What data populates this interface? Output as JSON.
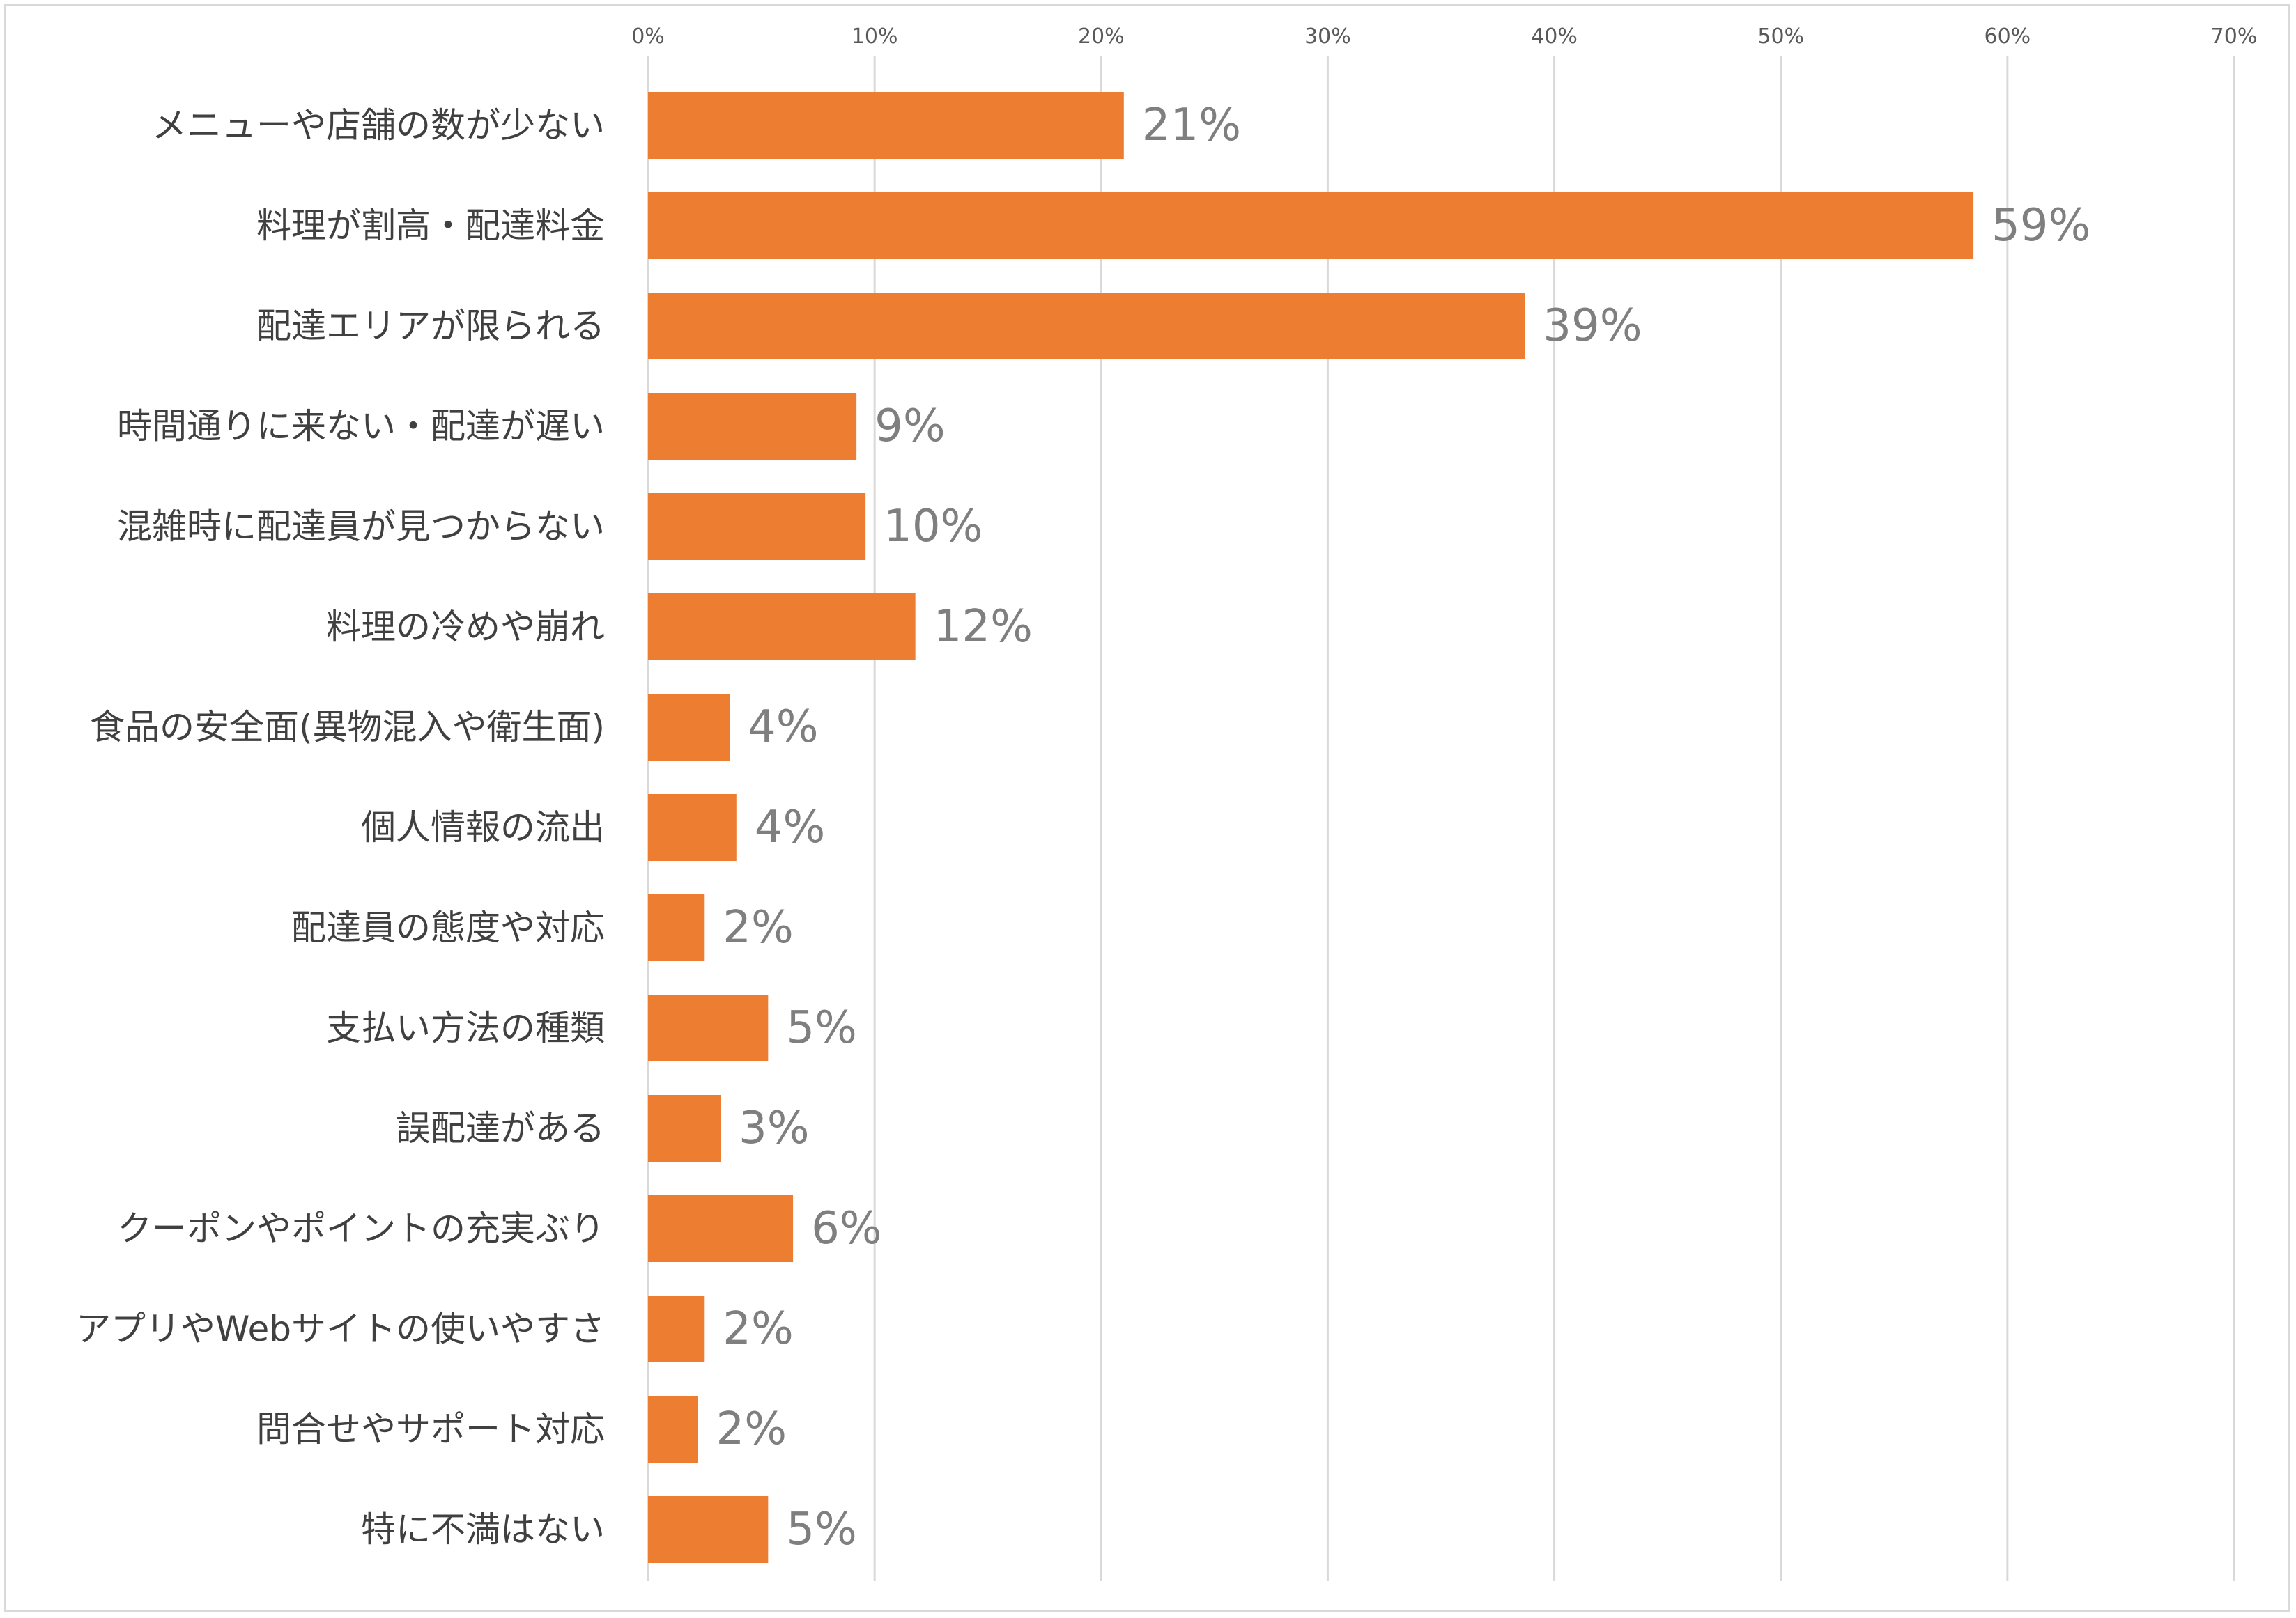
{
  "chart_data": {
    "type": "bar",
    "orientation": "horizontal",
    "categories": [
      "メニューや店舗の数が少ない",
      "料理が割高・配達料金",
      "配達エリアが限られる",
      "時間通りに来ない・配達が遅い",
      "混雑時に配達員が見つからない",
      "料理の冷めや崩れ",
      "食品の安全面(異物混入や衛生面)",
      "個人情報の流出",
      "配達員の態度や対応",
      "支払い方法の種類",
      "誤配達がある",
      "クーポンやポイントの充実ぶり",
      "アプリやWebサイトの使いやすさ",
      "問合せやサポート対応",
      "特に不満はない"
    ],
    "values": [
      21,
      58.5,
      38.7,
      9.2,
      9.6,
      11.8,
      3.6,
      3.9,
      2.5,
      5.3,
      3.2,
      6.4,
      2.5,
      2.2,
      5.3
    ],
    "value_labels": [
      "21%",
      "59%",
      "39%",
      "9%",
      "10%",
      "12%",
      "4%",
      "4%",
      "2%",
      "5%",
      "3%",
      "6%",
      "2%",
      "2%",
      "5%"
    ],
    "xlim": [
      0,
      70
    ],
    "x_ticks": [
      0,
      10,
      20,
      30,
      40,
      50,
      60,
      70
    ],
    "x_tick_labels": [
      "0%",
      "10%",
      "20%",
      "30%",
      "40%",
      "50%",
      "60%",
      "70%"
    ],
    "x_axis_position": "top",
    "grid": true,
    "legend": "none",
    "title": "",
    "xlabel": "",
    "ylabel": ""
  },
  "colors": {
    "bar": "#ed7d31",
    "grid": "#d9d9d9",
    "tick_text": "#595959",
    "category_text": "#404040",
    "data_label_text": "#7f7f7f",
    "border": "#d9d9d9"
  }
}
